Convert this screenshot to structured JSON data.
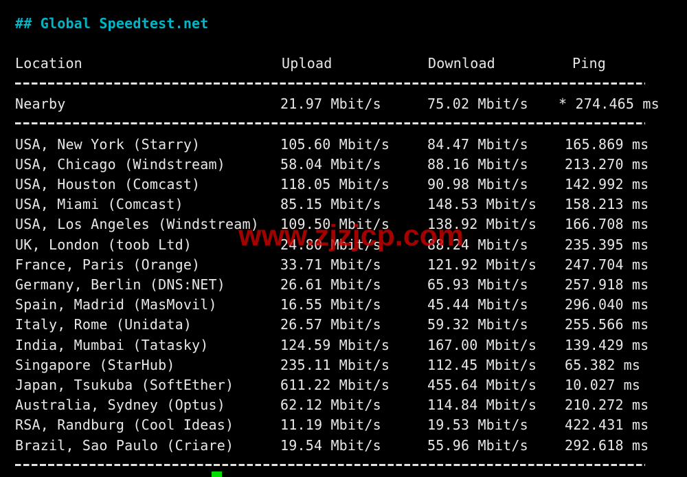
{
  "terminal": {
    "title": "## Global Speedtest.net",
    "columns": {
      "location": "Location",
      "upload": "Upload",
      "download": "Download",
      "ping": "Ping"
    },
    "nearby": {
      "location": "Nearby",
      "upload": "21.97 Mbit/s",
      "download": "75.02 Mbit/s",
      "ping": "* 274.465 ms"
    },
    "rows": [
      {
        "location": "USA, New York (Starry)",
        "upload": "105.60 Mbit/s",
        "download": "84.47 Mbit/s",
        "ping": "165.869 ms"
      },
      {
        "location": "USA, Chicago (Windstream)",
        "upload": "58.04 Mbit/s",
        "download": "88.16 Mbit/s",
        "ping": "213.270 ms"
      },
      {
        "location": "USA, Houston (Comcast)",
        "upload": "118.05 Mbit/s",
        "download": "90.98 Mbit/s",
        "ping": "142.992 ms"
      },
      {
        "location": "USA, Miami (Comcast)",
        "upload": "85.15 Mbit/s",
        "download": "148.53 Mbit/s",
        "ping": "158.213 ms"
      },
      {
        "location": "USA, Los Angeles (Windstream)",
        "upload": "109.50 Mbit/s",
        "download": "138.92 Mbit/s",
        "ping": "166.708 ms"
      },
      {
        "location": "UK, London (toob Ltd)",
        "upload": "24.80 Mbit/s",
        "download": "88.24 Mbit/s",
        "ping": "235.395 ms"
      },
      {
        "location": "France, Paris (Orange)",
        "upload": "33.71 Mbit/s",
        "download": "121.92 Mbit/s",
        "ping": "247.704 ms"
      },
      {
        "location": "Germany, Berlin (DNS:NET)",
        "upload": "26.61 Mbit/s",
        "download": "65.93 Mbit/s",
        "ping": "257.918 ms"
      },
      {
        "location": "Spain, Madrid (MasMovil)",
        "upload": "16.55 Mbit/s",
        "download": "45.44 Mbit/s",
        "ping": "296.040 ms"
      },
      {
        "location": "Italy, Rome (Unidata)",
        "upload": "26.57 Mbit/s",
        "download": "59.32 Mbit/s",
        "ping": "255.566 ms"
      },
      {
        "location": "India, Mumbai (Tatasky)",
        "upload": "124.59 Mbit/s",
        "download": "167.00 Mbit/s",
        "ping": "139.429 ms"
      },
      {
        "location": "Singapore (StarHub)",
        "upload": "235.11 Mbit/s",
        "download": "112.45 Mbit/s",
        "ping": "65.382 ms"
      },
      {
        "location": "Japan, Tsukuba (SoftEther)",
        "upload": "611.22 Mbit/s",
        "download": "455.64 Mbit/s",
        "ping": "10.027 ms"
      },
      {
        "location": "Australia, Sydney (Optus)",
        "upload": "62.12 Mbit/s",
        "download": "114.84 Mbit/s",
        "ping": "210.272 ms"
      },
      {
        "location": "RSA, Randburg (Cool Ideas)",
        "upload": "11.19 Mbit/s",
        "download": "19.53 Mbit/s",
        "ping": "422.431 ms"
      },
      {
        "location": "Brazil, Sao Paulo (Criare)",
        "upload": "19.54 Mbit/s",
        "download": "55.96 Mbit/s",
        "ping": "292.618 ms"
      }
    ],
    "watermark": "www.zjzjcp.com",
    "colors": {
      "background": "#000000",
      "text": "#e8e8e8",
      "title_accent": "#00b5c6",
      "cursor_green": "#00dd00",
      "watermark_red": "#cc0000"
    }
  }
}
